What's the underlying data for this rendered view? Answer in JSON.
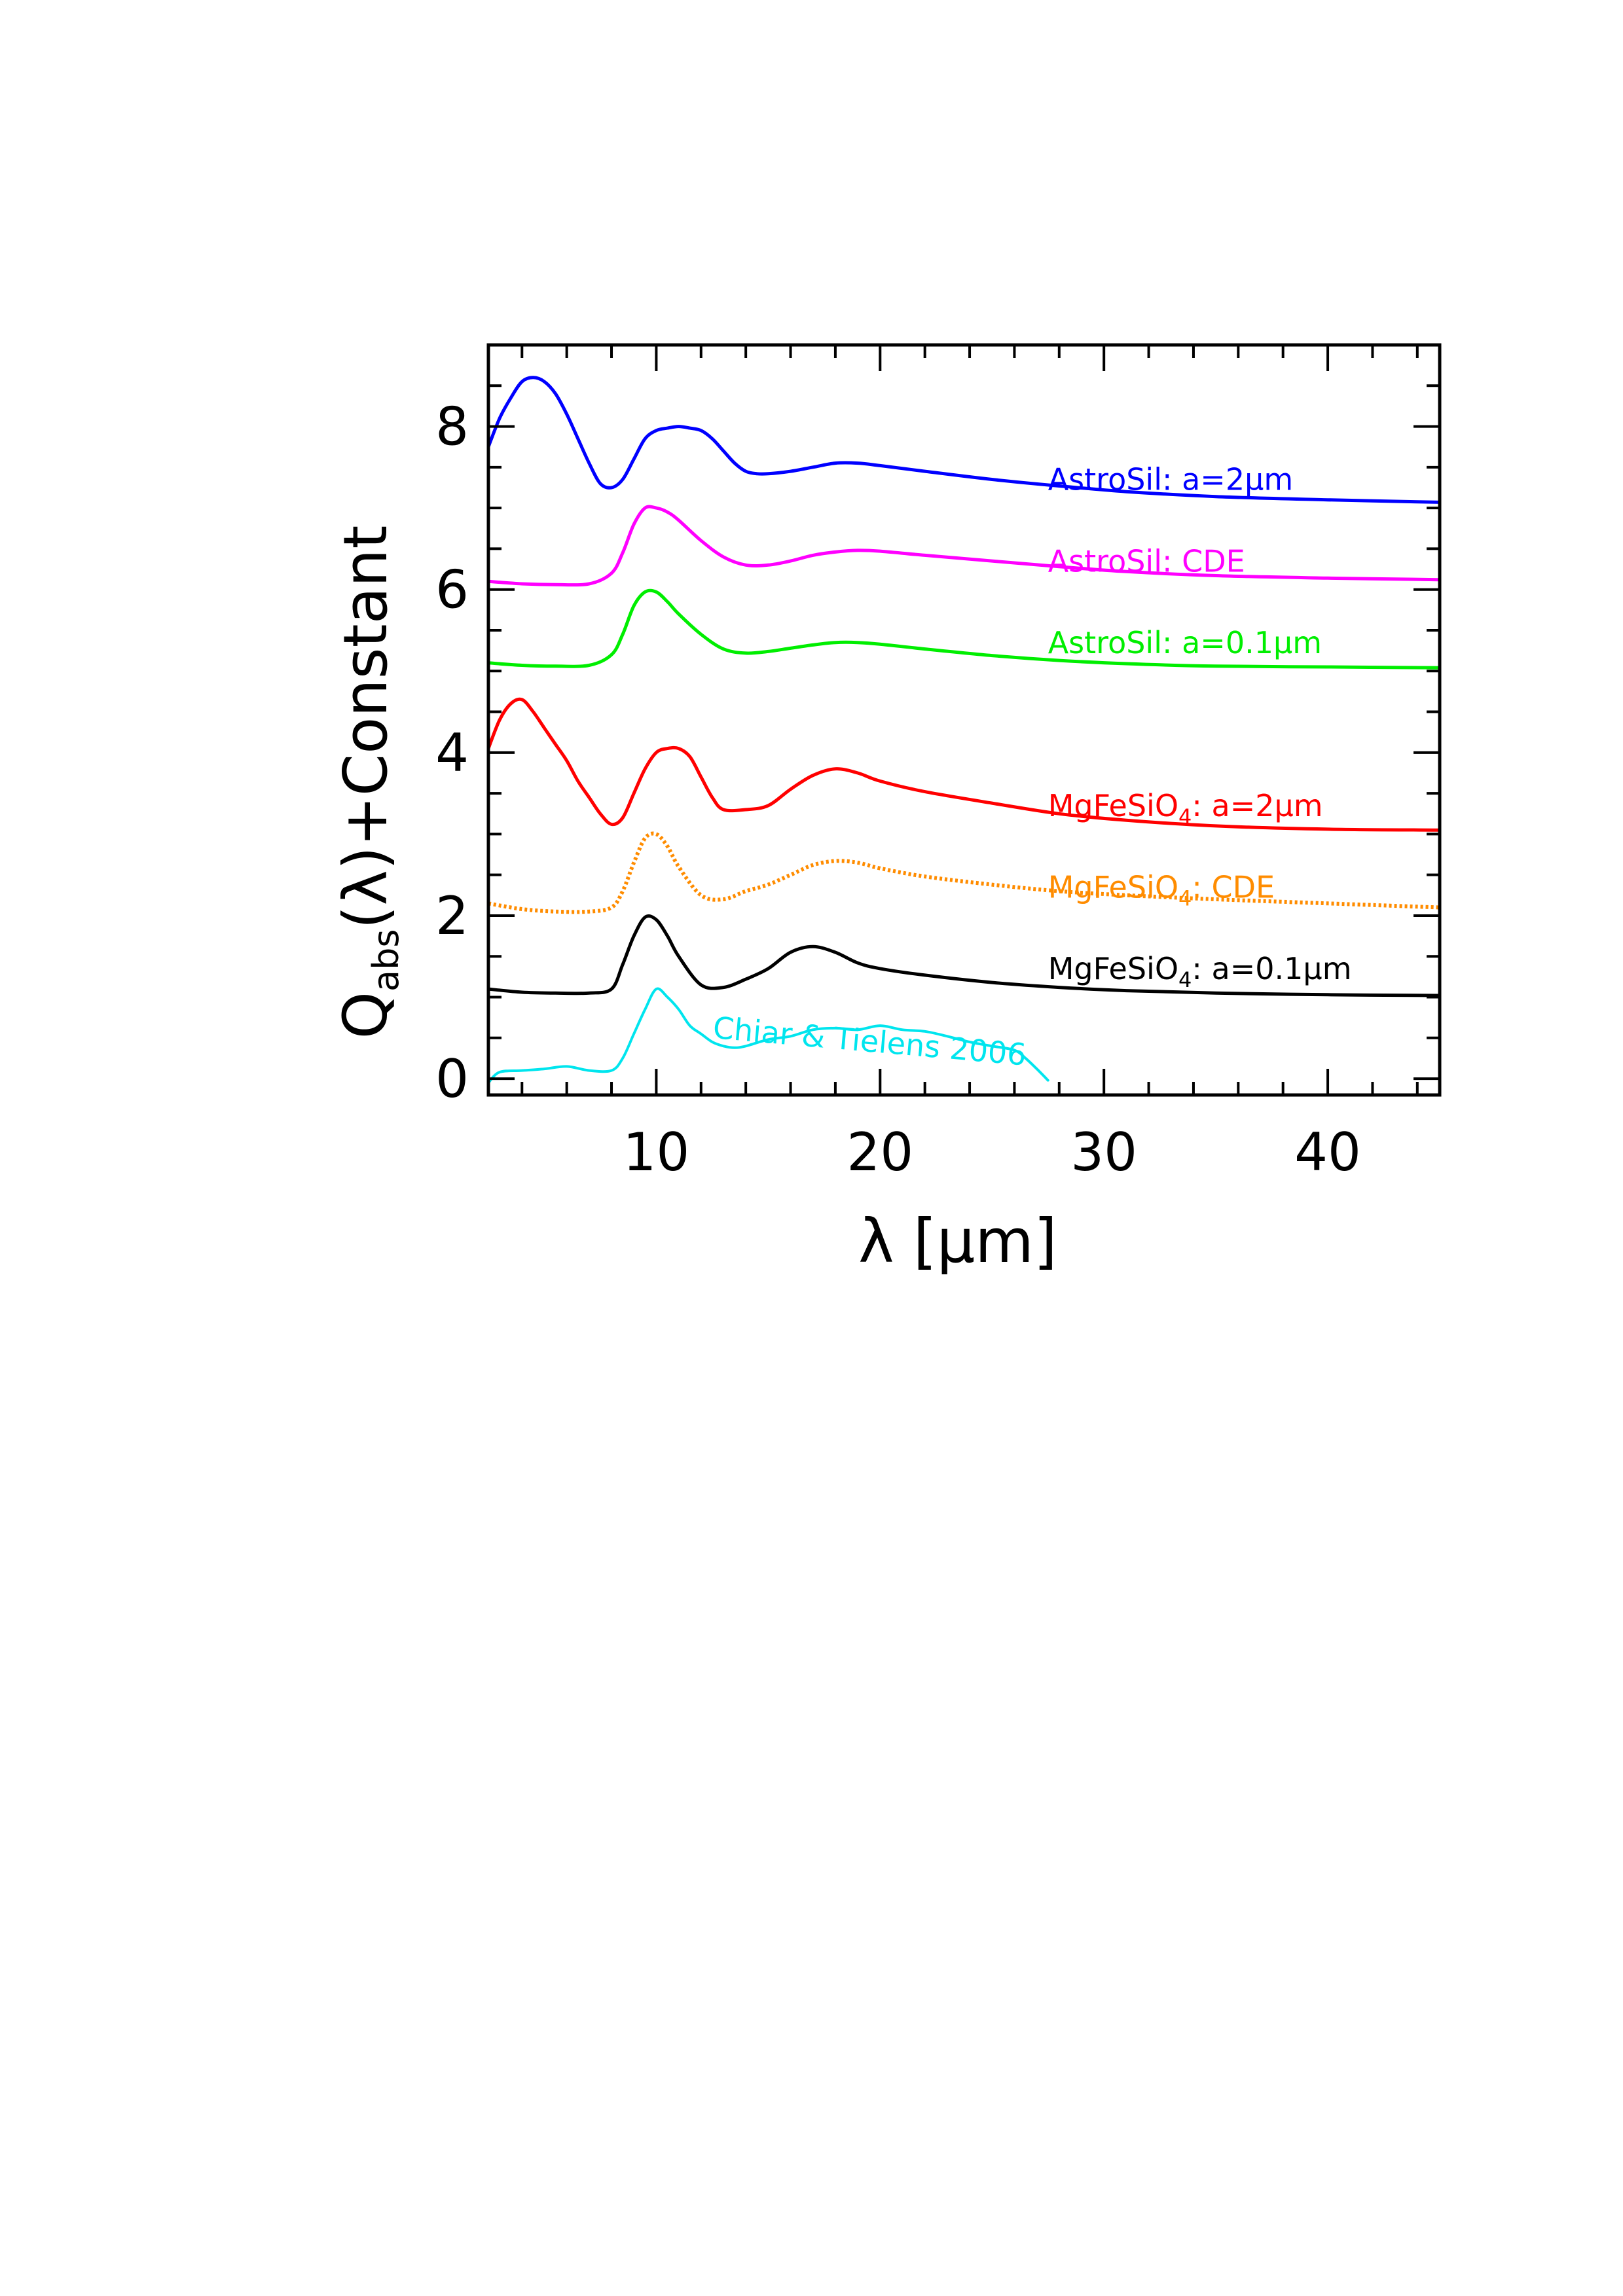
{
  "chart_data": {
    "type": "line",
    "title": "",
    "xlabel": "λ [μm]",
    "ylabel_main": "Q",
    "ylabel_sub": "abs",
    "ylabel_rest": "(λ)+Constant",
    "xlim": [
      2.5,
      45
    ],
    "ylim": [
      -0.2,
      9.0
    ],
    "x_ticks": [
      10,
      20,
      30,
      40
    ],
    "y_ticks": [
      0,
      2,
      4,
      6,
      8
    ],
    "series": [
      {
        "id": "astrosil-2um",
        "name": "AstroSil: a=2μm",
        "label_text": "AstroSil: a=2",
        "label_unit": "m",
        "color": "#0000ff",
        "style": "solid",
        "x": [
          2.5,
          3.0,
          3.5,
          4.0,
          4.5,
          5.0,
          5.5,
          6.0,
          6.5,
          7.0,
          7.5,
          8.0,
          8.5,
          9.0,
          9.5,
          10.0,
          10.5,
          11.0,
          11.5,
          12.0,
          12.5,
          13.0,
          13.5,
          14.0,
          14.5,
          15.0,
          16.0,
          17.0,
          18.0,
          19.0,
          20.0,
          22.0,
          25.0,
          28.0,
          31.0,
          35.0,
          40.0,
          45.0
        ],
        "y": [
          7.75,
          8.1,
          8.35,
          8.55,
          8.6,
          8.55,
          8.4,
          8.15,
          7.85,
          7.55,
          7.3,
          7.25,
          7.35,
          7.6,
          7.85,
          7.95,
          7.98,
          8.0,
          7.98,
          7.95,
          7.85,
          7.7,
          7.55,
          7.45,
          7.42,
          7.42,
          7.45,
          7.5,
          7.55,
          7.55,
          7.52,
          7.45,
          7.35,
          7.27,
          7.2,
          7.14,
          7.1,
          7.07
        ]
      },
      {
        "id": "astrosil-cde",
        "name": "AstroSil: CDE",
        "label_text": "AstroSil: CDE",
        "label_unit": "",
        "color": "#ff00ff",
        "style": "solid",
        "x": [
          2.5,
          4.0,
          5.5,
          7.0,
          8.0,
          8.5,
          9.0,
          9.5,
          10.0,
          10.5,
          11.0,
          12.0,
          13.0,
          14.0,
          15.0,
          16.0,
          17.0,
          18.0,
          19.0,
          20.0,
          22.0,
          25.0,
          28.0,
          31.0,
          35.0,
          40.0,
          45.0
        ],
        "y": [
          6.1,
          6.07,
          6.06,
          6.07,
          6.2,
          6.45,
          6.8,
          7.0,
          7.0,
          6.95,
          6.85,
          6.6,
          6.4,
          6.3,
          6.3,
          6.35,
          6.42,
          6.46,
          6.48,
          6.47,
          6.42,
          6.35,
          6.28,
          6.22,
          6.17,
          6.14,
          6.12
        ]
      },
      {
        "id": "astrosil-0.1um",
        "name": "AstroSil: a=0.1μm",
        "label_text": "AstroSil: a=0.1",
        "label_unit": "m",
        "color": "#00ee00",
        "style": "solid",
        "x": [
          2.5,
          4.0,
          5.5,
          7.0,
          8.0,
          8.5,
          9.0,
          9.5,
          10.0,
          10.5,
          11.0,
          12.0,
          13.0,
          14.0,
          15.0,
          16.0,
          17.0,
          18.0,
          19.0,
          20.0,
          22.0,
          25.0,
          28.0,
          31.0,
          35.0,
          40.0,
          45.0
        ],
        "y": [
          5.1,
          5.07,
          5.06,
          5.07,
          5.2,
          5.45,
          5.8,
          5.97,
          5.97,
          5.85,
          5.7,
          5.45,
          5.27,
          5.22,
          5.24,
          5.28,
          5.32,
          5.35,
          5.35,
          5.33,
          5.27,
          5.19,
          5.13,
          5.09,
          5.06,
          5.05,
          5.04
        ]
      },
      {
        "id": "mgfesio4-2um",
        "name": "MgFeSiO4: a=2μm",
        "label_text": "MgFeSiO",
        "label_sub": "4",
        "label_rest": ": a=2",
        "label_unit": "m",
        "color": "#ff0000",
        "style": "solid",
        "x": [
          2.5,
          3.0,
          3.5,
          4.0,
          4.5,
          5.0,
          5.5,
          6.0,
          6.5,
          7.0,
          7.5,
          8.0,
          8.5,
          9.0,
          9.5,
          10.0,
          10.5,
          11.0,
          11.5,
          12.0,
          12.5,
          13.0,
          14.0,
          15.0,
          16.0,
          17.0,
          18.0,
          19.0,
          20.0,
          22.0,
          25.0,
          28.0,
          31.0,
          35.0,
          40.0,
          45.0
        ],
        "y": [
          4.05,
          4.4,
          4.6,
          4.65,
          4.5,
          4.3,
          4.1,
          3.9,
          3.65,
          3.45,
          3.25,
          3.12,
          3.2,
          3.5,
          3.8,
          4.0,
          4.05,
          4.05,
          3.95,
          3.7,
          3.45,
          3.3,
          3.3,
          3.35,
          3.55,
          3.72,
          3.8,
          3.75,
          3.65,
          3.52,
          3.38,
          3.25,
          3.17,
          3.1,
          3.06,
          3.05
        ]
      },
      {
        "id": "mgfesio4-cde",
        "name": "MgFeSiO4: CDE",
        "label_text": "MgFeSiO",
        "label_sub": "4",
        "label_rest": ": CDE",
        "label_unit": "",
        "color": "#ff8c00",
        "style": "dotted",
        "x": [
          2.5,
          4.0,
          5.5,
          7.0,
          8.0,
          8.5,
          9.0,
          9.5,
          10.0,
          10.5,
          11.0,
          12.0,
          13.0,
          14.0,
          15.0,
          16.0,
          17.0,
          18.0,
          19.0,
          20.0,
          22.0,
          25.0,
          28.0,
          31.0,
          35.0,
          40.0,
          45.0
        ],
        "y": [
          2.15,
          2.08,
          2.05,
          2.05,
          2.1,
          2.3,
          2.65,
          2.95,
          3.0,
          2.85,
          2.6,
          2.25,
          2.2,
          2.3,
          2.38,
          2.5,
          2.62,
          2.67,
          2.65,
          2.58,
          2.48,
          2.38,
          2.3,
          2.25,
          2.2,
          2.15,
          2.1
        ]
      },
      {
        "id": "mgfesio4-0.1um",
        "name": "MgFeSiO4: a=0.1μm",
        "label_text": "MgFeSiO",
        "label_sub": "4",
        "label_rest": ": a=0.1",
        "label_unit": "m",
        "color": "#000000",
        "style": "solid",
        "x": [
          2.5,
          4.0,
          5.5,
          7.0,
          8.0,
          8.5,
          9.0,
          9.5,
          10.0,
          10.5,
          11.0,
          12.0,
          13.0,
          14.0,
          15.0,
          16.0,
          17.0,
          18.0,
          19.0,
          20.0,
          22.0,
          25.0,
          28.0,
          31.0,
          35.0,
          40.0,
          45.0
        ],
        "y": [
          1.1,
          1.06,
          1.05,
          1.05,
          1.1,
          1.4,
          1.75,
          1.98,
          1.95,
          1.75,
          1.5,
          1.15,
          1.12,
          1.22,
          1.35,
          1.55,
          1.62,
          1.55,
          1.42,
          1.35,
          1.27,
          1.18,
          1.12,
          1.08,
          1.05,
          1.03,
          1.02
        ]
      },
      {
        "id": "chiar-tielens-2006",
        "name": "Chiar & Tielens 2006",
        "label_text": "Chiar & Tielens  2006",
        "label_unit": "",
        "color": "#00e5ee",
        "style": "solid",
        "x": [
          2.5,
          3.0,
          4.0,
          5.0,
          6.0,
          7.0,
          8.0,
          8.5,
          9.0,
          9.5,
          10.0,
          10.5,
          11.0,
          11.5,
          12.0,
          12.5,
          13.0,
          13.5,
          14.0,
          15.0,
          16.0,
          17.0,
          18.0,
          19.0,
          20.0,
          21.0,
          22.0,
          23.0,
          24.0,
          25.0,
          26.0,
          26.5,
          27.0,
          27.5
        ],
        "y": [
          -0.05,
          0.08,
          0.1,
          0.12,
          0.15,
          0.1,
          0.1,
          0.25,
          0.55,
          0.85,
          1.1,
          1.0,
          0.85,
          0.65,
          0.55,
          0.45,
          0.4,
          0.38,
          0.4,
          0.48,
          0.52,
          0.6,
          0.62,
          0.6,
          0.65,
          0.6,
          0.58,
          0.52,
          0.45,
          0.4,
          0.35,
          0.25,
          0.12,
          -0.02
        ]
      }
    ],
    "annotations": [
      {
        "series": "astrosil-2um",
        "x": 27.5,
        "y": 7.22
      },
      {
        "series": "astrosil-cde",
        "x": 27.5,
        "y": 6.22
      },
      {
        "series": "astrosil-0.1um",
        "x": 27.5,
        "y": 5.22
      },
      {
        "series": "mgfesio4-2um",
        "x": 27.5,
        "y": 3.22
      },
      {
        "series": "mgfesio4-cde",
        "x": 27.5,
        "y": 2.22
      },
      {
        "series": "mgfesio4-0.1um",
        "x": 27.5,
        "y": 1.22
      },
      {
        "series": "chiar-tielens-2006",
        "x": 12.5,
        "y": 0.5,
        "angle": 5
      }
    ]
  }
}
